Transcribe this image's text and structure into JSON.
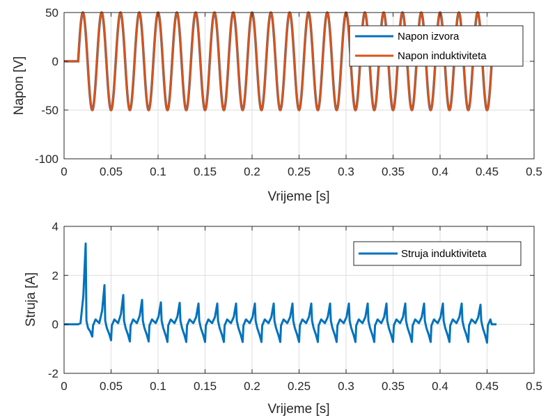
{
  "chart_data": [
    {
      "type": "line",
      "xlabel": "Vrijeme [s]",
      "ylabel": "Napon [V]",
      "xlim": [
        0,
        0.5
      ],
      "ylim": [
        -100,
        50
      ],
      "xticks": [
        0,
        0.05,
        0.1,
        0.15,
        0.2,
        0.25,
        0.3,
        0.35,
        0.4,
        0.45,
        0.5
      ],
      "xtick_labels": [
        "0",
        "0.05",
        "0.1",
        "0.15",
        "0.2",
        "0.25",
        "0.3",
        "0.35",
        "0.4",
        "0.45",
        "0.5"
      ],
      "yticks": [
        -100,
        -50,
        0,
        50
      ],
      "ytick_labels": [
        "-100",
        "-50",
        "0",
        "50"
      ],
      "grid": true,
      "legend": "top-right",
      "series": [
        {
          "name": "Napon izvora",
          "color": "#0072bd",
          "description_of_signal": "sine wave, amplitude 50, frequency 50 Hz, zero before 0.015 s, ends at 0.455 s",
          "amplitude": 50,
          "frequency_hz": 50,
          "start_s": 0.015,
          "end_s": 0.455
        },
        {
          "name": "Napon induktiviteta",
          "color": "#d95319",
          "amplitude": 50,
          "frequency_hz": 50,
          "start_s": 0.015,
          "end_s": 0.455
        }
      ]
    },
    {
      "type": "line",
      "xlabel": "Vrijeme [s]",
      "ylabel": "Struja [A]",
      "xlim": [
        0,
        0.5
      ],
      "ylim": [
        -2,
        4
      ],
      "xticks": [
        0,
        0.05,
        0.1,
        0.15,
        0.2,
        0.25,
        0.3,
        0.35,
        0.4,
        0.45,
        0.5
      ],
      "xtick_labels": [
        "0",
        "0.05",
        "0.1",
        "0.15",
        "0.2",
        "0.25",
        "0.3",
        "0.35",
        "0.4",
        "0.45",
        "0.5"
      ],
      "yticks": [
        -2,
        0,
        2,
        4
      ],
      "ytick_labels": [
        "-2",
        "0",
        "2",
        "4"
      ],
      "grid": true,
      "legend": "top-right",
      "series": [
        {
          "name": "Struja induktiviteta",
          "color": "#0072bd",
          "peaks": [
            3.3,
            1.6,
            1.2,
            1.0,
            0.9,
            0.88,
            0.85,
            0.85,
            0.85,
            0.85,
            0.85,
            0.85,
            0.85,
            0.85,
            0.85,
            0.85,
            0.85,
            0.85,
            0.85,
            0.85,
            0.85,
            0.8
          ],
          "troughs": [
            -0.5,
            -0.65,
            -0.7,
            -0.7,
            -0.72,
            -0.72,
            -0.72,
            -0.72,
            -0.72,
            -0.72,
            -0.72,
            -0.72,
            -0.72,
            -0.72,
            -0.72,
            -0.72,
            -0.72,
            -0.72,
            -0.72,
            -0.72,
            -0.72,
            -0.75
          ],
          "start_s": 0.015,
          "end_s": 0.46
        }
      ]
    }
  ]
}
